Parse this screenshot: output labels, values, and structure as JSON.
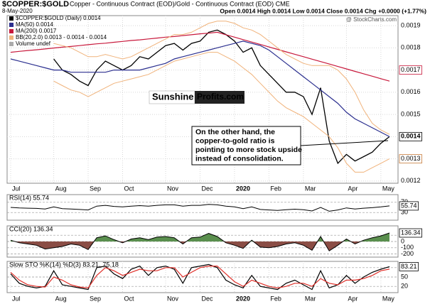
{
  "chart_data": [
    {
      "type": "line",
      "title": "$COPPER:$GOLD",
      "subtitle": "Copper - Continuous Contract (EOD)/Gold - Continuous Contract (EOD) CME",
      "date": "8-May-2020",
      "quote": "Open 0.0014 High 0.0014 Low 0.0014 Close 0.0014 Chg +0.0000 (+1.77%)",
      "source": "@ StockCharts.com",
      "legend_extra": "Volume undef",
      "logo": [
        "Sunshine",
        "Profits.com"
      ],
      "annotation": [
        "On the other hand, the",
        "copper-to-gold ratio is",
        "pointing to more stock upside",
        "instead of consolidation."
      ],
      "categories": [
        "Jul",
        null,
        null,
        null,
        null,
        "Aug",
        null,
        null,
        null,
        "Sep",
        null,
        null,
        null,
        "Oct",
        null,
        null,
        null,
        null,
        "Nov",
        null,
        null,
        null,
        "Dec",
        null,
        null,
        null,
        "2020",
        null,
        null,
        null,
        "Feb",
        null,
        null,
        null,
        "Mar",
        null,
        null,
        null,
        null,
        "Apr",
        null,
        null,
        null,
        "May",
        null
      ],
      "ylim": [
        0.00119,
        0.001945
      ],
      "yticks": [
        0.0012,
        0.0013,
        0.0014,
        0.0015,
        0.0016,
        0.0017,
        0.0018,
        0.0019
      ],
      "grid": true,
      "series": [
        {
          "name": "$COPPER:$GOLD (Daily) 0.0014",
          "color": "#000000",
          "width": 1.3,
          "last_value": 0.0014,
          "values": [
            null,
            null,
            null,
            null,
            null,
            0.00175,
            0.0017,
            0.00168,
            0.00165,
            0.00163,
            0.0017,
            0.00174,
            0.00172,
            0.0017,
            0.00172,
            0.00176,
            0.00175,
            0.00178,
            0.00181,
            0.00182,
            0.00179,
            0.00182,
            0.00183,
            0.00187,
            0.00188,
            0.00186,
            0.00183,
            0.00178,
            0.0018,
            0.00172,
            0.00168,
            0.00164,
            0.0016,
            0.0016,
            0.00158,
            0.0015,
            0.00162,
            0.00138,
            0.00128,
            0.00132,
            0.00129,
            0.00131,
            0.00133,
            0.00137,
            0.0014
          ]
        },
        {
          "name": "MA(50) 0.0014",
          "color": "#2b2f8f",
          "width": 1.2,
          "values": [
            0.00175,
            0.00174,
            0.00173,
            0.00172,
            0.00171,
            0.0017,
            0.0017,
            0.00169,
            0.00169,
            0.00169,
            0.00169,
            0.00169,
            0.0017,
            0.0017,
            0.0017,
            0.0017,
            0.00171,
            0.00172,
            0.00173,
            0.00175,
            0.00176,
            0.00177,
            0.00178,
            0.00179,
            0.0018,
            0.00181,
            0.00182,
            0.00183,
            0.00182,
            0.00181,
            0.00179,
            0.00176,
            0.00173,
            0.0017,
            0.00167,
            0.00164,
            0.00161,
            0.00158,
            0.00155,
            0.00151,
            0.00148,
            0.00146,
            0.00144,
            0.00142,
            0.0014
          ]
        },
        {
          "name": "MA(200) 0.0017",
          "color": "#c8193c",
          "width": 1.2,
          "last_value": 0.0017,
          "values": [
            0.00178,
            0.001784,
            0.001788,
            0.001791,
            0.001795,
            0.001799,
            0.001803,
            0.001806,
            0.00181,
            0.001814,
            0.001818,
            0.001821,
            0.001825,
            0.001829,
            0.001833,
            0.001836,
            0.00184,
            0.001844,
            0.001848,
            0.001851,
            0.001855,
            0.001859,
            0.001863,
            0.001866,
            0.00187,
            0.001859,
            0.001848,
            0.001837,
            0.001826,
            0.001815,
            0.001804,
            0.001793,
            0.001782,
            0.001771,
            0.00176,
            0.001749,
            0.001738,
            0.001727,
            0.001716,
            0.001705,
            0.001694,
            0.001683,
            0.001672,
            0.001661,
            0.00165
          ]
        },
        {
          "name": "BB(20,2.0) 0.0013 - 0.0014 - 0.0014",
          "color": "#f0b27a",
          "width": 1,
          "values": [
            null,
            null,
            null,
            null,
            null,
            0.00182,
            0.00181,
            0.0018,
            0.00178,
            0.00176,
            0.00176,
            0.00177,
            0.00176,
            0.00175,
            0.00176,
            0.00178,
            0.0018,
            0.00182,
            0.00184,
            0.00186,
            0.00186,
            0.00187,
            0.00189,
            0.00191,
            0.00192,
            0.00192,
            0.00191,
            0.00189,
            0.00188,
            0.00186,
            0.00183,
            0.0018,
            0.00177,
            0.00175,
            0.00173,
            0.00172,
            0.00172,
            0.00172,
            0.0017,
            0.00166,
            0.0016,
            0.00152,
            0.00146,
            0.00143,
            0.00141
          ]
        },
        {
          "color": "#f0b27a",
          "width": 1,
          "last_value": 0.0013,
          "values": [
            null,
            null,
            null,
            null,
            null,
            0.00165,
            0.00163,
            0.00161,
            0.0016,
            0.00158,
            0.0016,
            0.00162,
            0.00164,
            0.00165,
            0.00166,
            0.00167,
            0.00168,
            0.0017,
            0.00172,
            0.00174,
            0.00175,
            0.00176,
            0.00177,
            0.00178,
            0.00178,
            0.00176,
            0.00174,
            0.00171,
            0.00168,
            0.00164,
            0.0016,
            0.00156,
            0.00153,
            0.00151,
            0.00149,
            0.00146,
            0.00143,
            0.0014,
            0.00135,
            0.00128,
            0.00124,
            0.00124,
            0.00126,
            0.00128,
            0.0013
          ]
        }
      ]
    },
    {
      "type": "line",
      "title": "RSI(14) 55.74",
      "ylim": [
        0,
        100
      ],
      "yticks": [
        70,
        30
      ],
      "series": [
        {
          "color": "#000000",
          "width": 1,
          "last_value": 55.74,
          "values": [
            50,
            48,
            47,
            46,
            44,
            52,
            45,
            44,
            42,
            40,
            55,
            58,
            54,
            52,
            55,
            57,
            55,
            58,
            60,
            60,
            55,
            58,
            58,
            62,
            60,
            55,
            52,
            45,
            52,
            42,
            40,
            38,
            41,
            43,
            41,
            36,
            50,
            35,
            40,
            48,
            44,
            47,
            49,
            52,
            55.74
          ]
        }
      ]
    },
    {
      "type": "line",
      "title": "CCI(20) 136.34",
      "ylim": [
        -250,
        250
      ],
      "yticks": [
        100,
        0,
        -100,
        -200
      ],
      "fill_above": "#5a8f4e",
      "fill_below": "#8a4d45",
      "series": [
        {
          "color": "#000000",
          "width": 1,
          "last_value": 136.34,
          "values": [
            20,
            -20,
            -40,
            -60,
            -120,
            -100,
            -80,
            -40,
            -60,
            -130,
            60,
            90,
            30,
            -20,
            40,
            60,
            30,
            70,
            80,
            60,
            -40,
            60,
            70,
            130,
            80,
            -20,
            -60,
            -110,
            20,
            -90,
            -100,
            -80,
            -40,
            -20,
            -60,
            -140,
            80,
            -150,
            -60,
            40,
            -40,
            20,
            60,
            90,
            136.34
          ]
        }
      ]
    },
    {
      "type": "line",
      "title": "Slow STO %K(14) %D(3) 83.21,",
      "title_extra": "75.18",
      "ylim": [
        0,
        100
      ],
      "yticks": [
        80,
        50,
        20
      ],
      "categories": [
        "Jul",
        null,
        null,
        null,
        null,
        "Aug",
        null,
        null,
        null,
        "Sep",
        null,
        null,
        null,
        "Oct",
        null,
        null,
        null,
        null,
        "Nov",
        null,
        null,
        null,
        "Dec",
        null,
        null,
        null,
        "2020",
        null,
        null,
        null,
        "Feb",
        null,
        null,
        null,
        "Mar",
        null,
        null,
        null,
        null,
        "Apr",
        null,
        null,
        null,
        "May",
        null
      ],
      "series": [
        {
          "color": "#000000",
          "width": 1.2,
          "last_value": 83.21,
          "values": [
            60,
            30,
            20,
            15,
            20,
            70,
            25,
            20,
            15,
            10,
            80,
            85,
            60,
            45,
            75,
            85,
            55,
            80,
            85,
            75,
            30,
            80,
            85,
            90,
            80,
            40,
            25,
            15,
            55,
            20,
            15,
            10,
            30,
            40,
            25,
            10,
            70,
            15,
            25,
            55,
            30,
            50,
            65,
            75,
            83.21
          ]
        },
        {
          "color": "#e0302a",
          "width": 1.2,
          "values": [
            65,
            40,
            25,
            20,
            18,
            50,
            40,
            25,
            18,
            15,
            55,
            80,
            70,
            55,
            65,
            75,
            70,
            70,
            80,
            80,
            50,
            65,
            80,
            85,
            85,
            60,
            35,
            20,
            40,
            30,
            20,
            15,
            20,
            30,
            30,
            20,
            45,
            30,
            25,
            40,
            40,
            45,
            55,
            70,
            75.18
          ]
        }
      ]
    }
  ]
}
